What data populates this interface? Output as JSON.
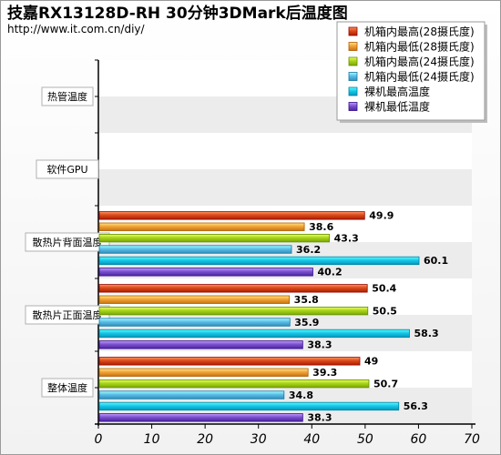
{
  "chart_data": {
    "type": "bar",
    "orientation": "horizontal",
    "title": "技嘉RX13128D-RH 30分钟3DMark后温度图",
    "subtitle": "http://www.it.com.cn/diy/",
    "categories": [
      "热管温度",
      "软件GPU",
      "散热片背面温度",
      "散热片正面温度",
      "整体温度"
    ],
    "series": [
      {
        "name": "机箱内最高(28摄氏度)",
        "color": "#d94a1a",
        "values": [
          null,
          null,
          49.9,
          50.4,
          49
        ]
      },
      {
        "name": "机箱内最低(28摄氏度)",
        "color": "#f3a23a",
        "values": [
          null,
          null,
          38.6,
          35.8,
          39.3
        ]
      },
      {
        "name": "机箱内最高(24摄氏度)",
        "color": "#a8d41e",
        "values": [
          null,
          null,
          43.3,
          50.5,
          50.7
        ]
      },
      {
        "name": "机箱内最低(24摄氏度)",
        "color": "#5bbde8",
        "values": [
          null,
          null,
          36.2,
          35.9,
          34.8
        ]
      },
      {
        "name": "裸机最高温度",
        "color": "#18c6e8",
        "values": [
          null,
          null,
          60.1,
          58.3,
          56.3
        ]
      },
      {
        "name": "裸机最低温度",
        "color": "#7a52cf",
        "values": [
          null,
          null,
          40.2,
          38.3,
          38.3
        ]
      }
    ],
    "value_labels": [
      [
        null,
        null,
        "49.9",
        "50.4",
        "49"
      ],
      [
        null,
        null,
        "38.6",
        "35.8",
        "39.3"
      ],
      [
        null,
        null,
        "43.3",
        "50.5",
        "50.7"
      ],
      [
        null,
        null,
        "36.2",
        "35.9",
        "34.8"
      ],
      [
        null,
        null,
        "60.1",
        "58.3",
        "56.3"
      ],
      [
        null,
        null,
        "40.2",
        "38.3",
        "38.3"
      ]
    ],
    "xlim": [
      0,
      70
    ],
    "xticks": [
      "0",
      "10",
      "20",
      "30",
      "40",
      "50",
      "60",
      "70"
    ],
    "grid": false,
    "banded_background": true,
    "legend_position": "top-right"
  }
}
